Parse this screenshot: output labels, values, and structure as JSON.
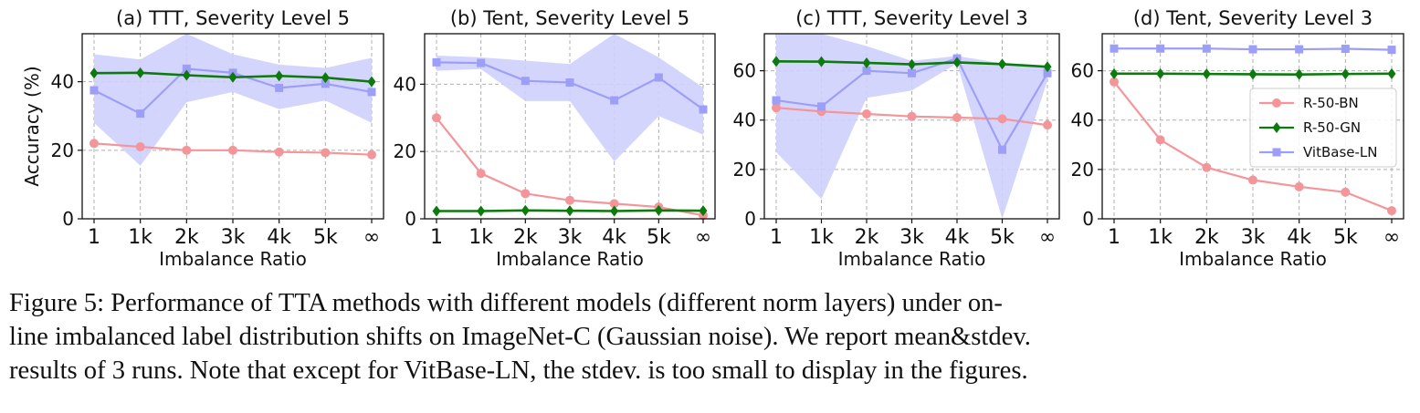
{
  "chart_data": [
    {
      "type": "line",
      "title": "(a) TTT, Severity Level 5",
      "xlabel": "Imbalance Ratio",
      "ylabel": "Accuracy (%)",
      "categories": [
        "1",
        "1k",
        "2k",
        "3k",
        "4k",
        "5k",
        "∞"
      ],
      "ylim": [
        0,
        54
      ],
      "yticks": [
        0,
        20,
        40
      ],
      "grid": true,
      "series": [
        {
          "name": "R-50-BN",
          "values": [
            22.0,
            21.0,
            20.0,
            20.0,
            19.5,
            19.3,
            18.7
          ]
        },
        {
          "name": "R-50-GN",
          "values": [
            42.5,
            42.6,
            41.9,
            41.3,
            41.7,
            41.2,
            40.0
          ]
        },
        {
          "name": "VitBase-LN",
          "values": [
            37.5,
            30.7,
            43.8,
            42.6,
            38.2,
            39.4,
            37.0
          ],
          "band_lower": [
            28.0,
            15.5,
            34.0,
            37.0,
            32.0,
            34.5,
            28.0
          ],
          "band_upper": [
            48.0,
            46.5,
            54.0,
            48.0,
            45.0,
            44.0,
            47.0
          ]
        }
      ]
    },
    {
      "type": "line",
      "title": "(b) Tent, Severity Level 5",
      "xlabel": "Imbalance Ratio",
      "ylabel": "",
      "categories": [
        "1",
        "1k",
        "2k",
        "3k",
        "4k",
        "5k",
        "∞"
      ],
      "ylim": [
        0,
        55
      ],
      "yticks": [
        0,
        20,
        40
      ],
      "grid": true,
      "series": [
        {
          "name": "R-50-BN",
          "values": [
            30.0,
            13.5,
            7.5,
            5.5,
            4.5,
            3.5,
            1.0
          ]
        },
        {
          "name": "R-50-GN",
          "values": [
            2.3,
            2.3,
            2.5,
            2.4,
            2.3,
            2.5,
            2.4
          ]
        },
        {
          "name": "VitBase-LN",
          "values": [
            46.5,
            46.3,
            41.0,
            40.5,
            35.2,
            42.0,
            32.5
          ],
          "band_lower": [
            44.0,
            44.5,
            35.0,
            35.0,
            17.0,
            30.5,
            25.0
          ],
          "band_upper": [
            48.5,
            48.0,
            47.0,
            46.0,
            55.0,
            48.0,
            39.0
          ]
        }
      ]
    },
    {
      "type": "line",
      "title": "(c) TTT, Severity Level 3",
      "xlabel": "Imbalance Ratio",
      "ylabel": "",
      "categories": [
        "1",
        "1k",
        "2k",
        "3k",
        "4k",
        "5k",
        "∞"
      ],
      "ylim": [
        0,
        75
      ],
      "yticks": [
        0,
        20,
        40,
        60
      ],
      "grid": true,
      "series": [
        {
          "name": "R-50-BN",
          "values": [
            45.0,
            43.5,
            42.5,
            41.5,
            41.0,
            40.5,
            38.0
          ]
        },
        {
          "name": "R-50-GN",
          "values": [
            63.8,
            63.7,
            63.2,
            62.6,
            63.4,
            62.7,
            61.6
          ]
        },
        {
          "name": "VitBase-LN",
          "values": [
            48.0,
            45.5,
            60.0,
            59.0,
            65.0,
            28.0,
            59.0
          ],
          "band_lower": [
            27.0,
            8.0,
            49.0,
            52.0,
            63.0,
            0.0,
            56.0
          ],
          "band_upper": [
            75.0,
            75.0,
            70.0,
            64.0,
            66.0,
            63.0,
            62.0
          ]
        }
      ]
    },
    {
      "type": "line",
      "title": "(d) Tent, Severity Level 3",
      "xlabel": "Imbalance Ratio",
      "ylabel": "",
      "categories": [
        "1",
        "1k",
        "2k",
        "3k",
        "4k",
        "5k",
        "∞"
      ],
      "ylim": [
        0,
        75
      ],
      "yticks": [
        0,
        20,
        40,
        60
      ],
      "grid": true,
      "legend": {
        "position": "right",
        "entries": [
          "R-50-BN",
          "R-50-GN",
          "VitBase-LN"
        ]
      },
      "series": [
        {
          "name": "R-50-BN",
          "values": [
            55.5,
            32.0,
            20.8,
            15.7,
            13.0,
            10.8,
            3.3
          ]
        },
        {
          "name": "R-50-GN",
          "values": [
            58.8,
            58.8,
            58.7,
            58.6,
            58.5,
            58.7,
            58.8
          ]
        },
        {
          "name": "VitBase-LN",
          "values": [
            69.0,
            69.0,
            69.0,
            68.7,
            68.7,
            68.9,
            68.5
          ]
        }
      ]
    }
  ],
  "colors": {
    "R-50-BN": "#f4959a",
    "R-50-GN": "#0c7a0c",
    "VitBase-LN": "#9d9ef7",
    "band": "#cfd0fd",
    "grid": "#b0b0b0"
  },
  "markers": {
    "R-50-BN": "circle",
    "R-50-GN": "diamond",
    "VitBase-LN": "square"
  },
  "caption": {
    "lines": [
      "Figure 5: Performance of TTA methods with different models (different norm layers) under on-",
      "line imbalanced label distribution shifts on ImageNet-C (Gaussian noise). We report mean&stdev.",
      "results of 3 runs. Note that except for VitBase-LN, the stdev. is too small to display in the figures."
    ]
  }
}
